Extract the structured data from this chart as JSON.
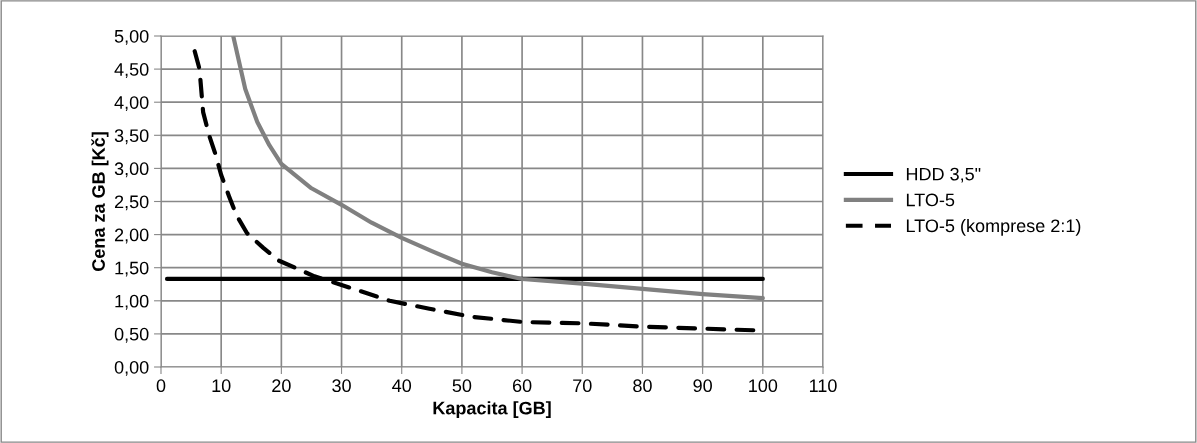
{
  "chart_data": {
    "type": "line",
    "xlabel": "Kapacita [GB]",
    "ylabel": "Cena za GB [Kč]",
    "xlim": [
      0,
      110
    ],
    "xticks": [
      0,
      10,
      20,
      30,
      40,
      50,
      60,
      70,
      80,
      90,
      100,
      110
    ],
    "ylim": [
      0,
      5
    ],
    "yticks": [
      {
        "value": 0,
        "label": "0,00"
      },
      {
        "value": 0.5,
        "label": "0,50"
      },
      {
        "value": 1,
        "label": "1,00"
      },
      {
        "value": 1.5,
        "label": "1,50"
      },
      {
        "value": 2,
        "label": "2,00"
      },
      {
        "value": 2.5,
        "label": "2,50"
      },
      {
        "value": 3,
        "label": "3,00"
      },
      {
        "value": 3.5,
        "label": "3,50"
      },
      {
        "value": 4,
        "label": "4,00"
      },
      {
        "value": 4.5,
        "label": "4,50"
      },
      {
        "value": 5,
        "label": "5,00"
      }
    ],
    "grid": true,
    "legend": "right",
    "marker": "none",
    "series": [
      {
        "name": "HDD 3,5\"",
        "color": "#000000",
        "line_style": "solid",
        "x": [
          1,
          100
        ],
        "values": [
          1.33,
          1.33
        ]
      },
      {
        "name": "LTO-5",
        "color": "#808080",
        "line_style": "solid",
        "x": [
          12,
          14,
          16,
          18,
          20,
          25,
          30,
          35,
          40,
          45,
          50,
          55,
          60,
          70,
          80,
          90,
          100
        ],
        "values": [
          5.0,
          4.2,
          3.7,
          3.35,
          3.07,
          2.7,
          2.45,
          2.18,
          1.95,
          1.75,
          1.56,
          1.43,
          1.33,
          1.26,
          1.18,
          1.1,
          1.04
        ]
      },
      {
        "name": "LTO-5 (komprese 2:1)",
        "color": "#000000",
        "line_style": "dashed",
        "x": [
          5.6,
          6.4,
          7,
          8,
          9.1,
          10,
          11.3,
          12.5,
          14.3,
          17,
          19.5,
          25.5,
          32,
          38,
          44.6,
          51.5,
          60,
          70,
          80,
          90,
          100
        ],
        "values": [
          4.77,
          4.5,
          3.85,
          3.5,
          3.2,
          2.9,
          2.58,
          2.3,
          2.02,
          1.8,
          1.61,
          1.37,
          1.18,
          1.0,
          0.88,
          0.76,
          0.68,
          0.66,
          0.61,
          0.58,
          0.55
        ]
      }
    ]
  }
}
